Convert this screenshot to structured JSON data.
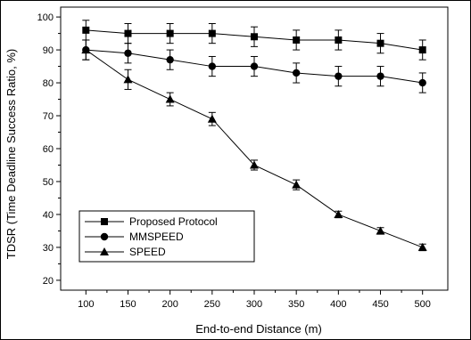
{
  "chart_data": {
    "type": "line",
    "title": "",
    "xlabel": "End-to-end Distance (m)",
    "ylabel": "TDSR (Time Deadline Success Ratio, %)",
    "x": [
      100,
      150,
      200,
      250,
      300,
      350,
      400,
      450,
      500
    ],
    "xlim": [
      70,
      530
    ],
    "ylim": [
      17,
      103
    ],
    "xticks": [
      100,
      150,
      200,
      250,
      300,
      350,
      400,
      450,
      500
    ],
    "yticks": [
      20,
      30,
      40,
      50,
      60,
      70,
      80,
      90,
      100
    ],
    "grid": false,
    "legend_position": "lower-left",
    "error_bars": true,
    "series": [
      {
        "name": "Proposed Protocol",
        "marker": "square",
        "values": [
          96,
          95,
          95,
          95,
          94,
          93,
          93,
          92,
          90
        ],
        "errors": [
          3,
          3,
          3,
          3,
          3,
          3,
          3,
          3,
          3
        ]
      },
      {
        "name": "MMSPEED",
        "marker": "circle",
        "values": [
          90,
          89,
          87,
          85,
          85,
          83,
          82,
          82,
          80
        ],
        "errors": [
          3,
          3,
          3,
          3,
          3,
          3,
          3,
          3,
          3
        ]
      },
      {
        "name": "SPEED",
        "marker": "triangle",
        "values": [
          90,
          81,
          75,
          69,
          55,
          49,
          40,
          35,
          30
        ],
        "errors": [
          3,
          3,
          2,
          2,
          1.5,
          1.5,
          1,
          1,
          1
        ]
      }
    ]
  }
}
